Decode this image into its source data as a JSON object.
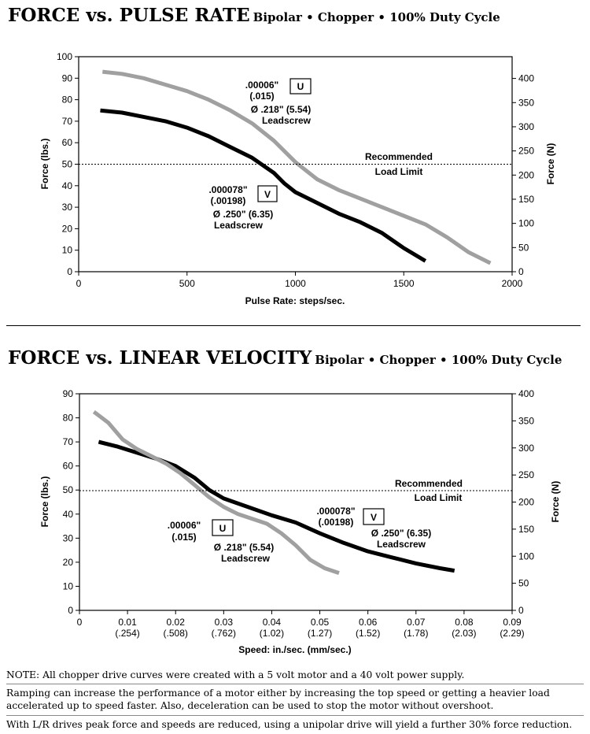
{
  "page": {
    "notes": [
      "NOTE: All chopper drive curves were created with a 5 volt motor and a 40 volt power supply.",
      "Ramping can increase the performance of a motor either by increasing the top speed or getting a heavier load accelerated up to speed faster.  Also, deceleration can be used to stop the motor without overshoot.",
      "With L/R drives peak force and speeds are reduced, using a unipolar drive will yield a further 30% force reduction."
    ]
  },
  "chart_data": [
    {
      "type": "line",
      "title": "FORCE vs. PULSE RATE",
      "subtitle": "Bipolar • Chopper • 100% Duty Cycle",
      "xlabel": "Pulse Rate:  steps/sec.",
      "ylabel": "Force (lbs.)",
      "y2label": "Force (N)",
      "xlim": [
        0,
        2000
      ],
      "ylim": [
        0,
        100
      ],
      "y2lim": [
        0,
        445
      ],
      "xticks": [
        0,
        500,
        1000,
        1500,
        2000
      ],
      "xtick_labels": [
        "0",
        "500",
        "1000",
        "1500",
        "2000"
      ],
      "yticks": [
        0,
        10,
        20,
        30,
        40,
        50,
        60,
        70,
        80,
        90,
        100
      ],
      "y2ticks": [
        0,
        50,
        100,
        150,
        200,
        250,
        300,
        350,
        400
      ],
      "grid": false,
      "reference_line": {
        "y": 50,
        "label_lines": [
          "Recommended",
          "Load Limit"
        ]
      },
      "series": [
        {
          "color": "#a0a0a0",
          "annotation_lines": [
            ".00006\"",
            "(.015)",
            "Ø .218\" (5.54)",
            "Leadscrew"
          ],
          "box_label": "U",
          "points": [
            [
              110,
              93
            ],
            [
              200,
              92
            ],
            [
              300,
              90
            ],
            [
              400,
              87
            ],
            [
              500,
              84
            ],
            [
              600,
              80
            ],
            [
              700,
              75
            ],
            [
              800,
              69
            ],
            [
              900,
              61
            ],
            [
              1000,
              51
            ],
            [
              1100,
              43
            ],
            [
              1200,
              38
            ],
            [
              1300,
              34
            ],
            [
              1400,
              30
            ],
            [
              1500,
              26
            ],
            [
              1600,
              22
            ],
            [
              1700,
              16
            ],
            [
              1800,
              9
            ],
            [
              1900,
              4
            ]
          ]
        },
        {
          "color": "#000000",
          "annotation_lines": [
            ".000078\"",
            "(.00198)",
            "Ø .250\" (6.35)",
            "Leadscrew"
          ],
          "box_label": "V",
          "points": [
            [
              100,
              75
            ],
            [
              200,
              74
            ],
            [
              300,
              72
            ],
            [
              400,
              70
            ],
            [
              500,
              67
            ],
            [
              600,
              63
            ],
            [
              700,
              58
            ],
            [
              800,
              53
            ],
            [
              900,
              46
            ],
            [
              950,
              41
            ],
            [
              1000,
              37
            ],
            [
              1100,
              32
            ],
            [
              1200,
              27
            ],
            [
              1300,
              23
            ],
            [
              1400,
              18
            ],
            [
              1500,
              11
            ],
            [
              1600,
              5
            ]
          ]
        }
      ]
    },
    {
      "type": "line",
      "title": "FORCE vs. LINEAR VELOCITY",
      "subtitle": "Bipolar • Chopper • 100% Duty Cycle",
      "xlabel": "Speed:  in./sec. (mm/sec.)",
      "ylabel": "Force (lbs.)",
      "y2label": "Force (N)",
      "xlim": [
        0,
        0.09
      ],
      "ylim": [
        0,
        90
      ],
      "y2lim": [
        0,
        400
      ],
      "xticks": [
        0,
        0.01,
        0.02,
        0.03,
        0.04,
        0.05,
        0.06,
        0.07,
        0.08,
        0.09
      ],
      "xtick_labels": [
        "0",
        "0.01",
        "0.02",
        "0.03",
        "0.04",
        "0.05",
        "0.06",
        "0.07",
        "0.08",
        "0.09"
      ],
      "xtick_sublabels": [
        "",
        "(.254)",
        "(.508)",
        "(.762)",
        "(1.02)",
        "(1.27)",
        "(1.52)",
        "(1.78)",
        "(2.03)",
        "(2.29)"
      ],
      "yticks": [
        0,
        10,
        20,
        30,
        40,
        50,
        60,
        70,
        80,
        90
      ],
      "y2ticks": [
        0,
        50,
        100,
        150,
        200,
        250,
        300,
        350,
        400
      ],
      "grid": false,
      "reference_line": {
        "y": 50,
        "label_lines": [
          "Recommended",
          "Load Limit"
        ]
      },
      "series": [
        {
          "color": "#a0a0a0",
          "annotation_lines": [
            ".00006\"",
            "(.015)",
            "Ø .218\" (5.54)",
            "Leadscrew"
          ],
          "box_label": "U",
          "points": [
            [
              0.003,
              82.5
            ],
            [
              0.006,
              78
            ],
            [
              0.009,
              71
            ],
            [
              0.012,
              67
            ],
            [
              0.015,
              64
            ],
            [
              0.018,
              61
            ],
            [
              0.021,
              57
            ],
            [
              0.024,
              52
            ],
            [
              0.027,
              47
            ],
            [
              0.03,
              43
            ],
            [
              0.033,
              40
            ],
            [
              0.036,
              38
            ],
            [
              0.039,
              36
            ],
            [
              0.042,
              32
            ],
            [
              0.045,
              27
            ],
            [
              0.048,
              21
            ],
            [
              0.051,
              17.5
            ],
            [
              0.054,
              15.5
            ]
          ]
        },
        {
          "color": "#000000",
          "annotation_lines": [
            ".000078\"",
            "(.00198)",
            "Ø .250\" (6.35)",
            "Leadscrew"
          ],
          "box_label": "V",
          "points": [
            [
              0.004,
              70
            ],
            [
              0.008,
              68
            ],
            [
              0.012,
              65.5
            ],
            [
              0.016,
              63
            ],
            [
              0.02,
              60
            ],
            [
              0.024,
              55
            ],
            [
              0.027,
              50
            ],
            [
              0.03,
              46.5
            ],
            [
              0.035,
              43
            ],
            [
              0.04,
              39.5
            ],
            [
              0.045,
              36.5
            ],
            [
              0.05,
              32
            ],
            [
              0.055,
              28
            ],
            [
              0.06,
              24.5
            ],
            [
              0.065,
              22
            ],
            [
              0.07,
              19.5
            ],
            [
              0.075,
              17.5
            ],
            [
              0.078,
              16.5
            ]
          ]
        }
      ]
    }
  ]
}
